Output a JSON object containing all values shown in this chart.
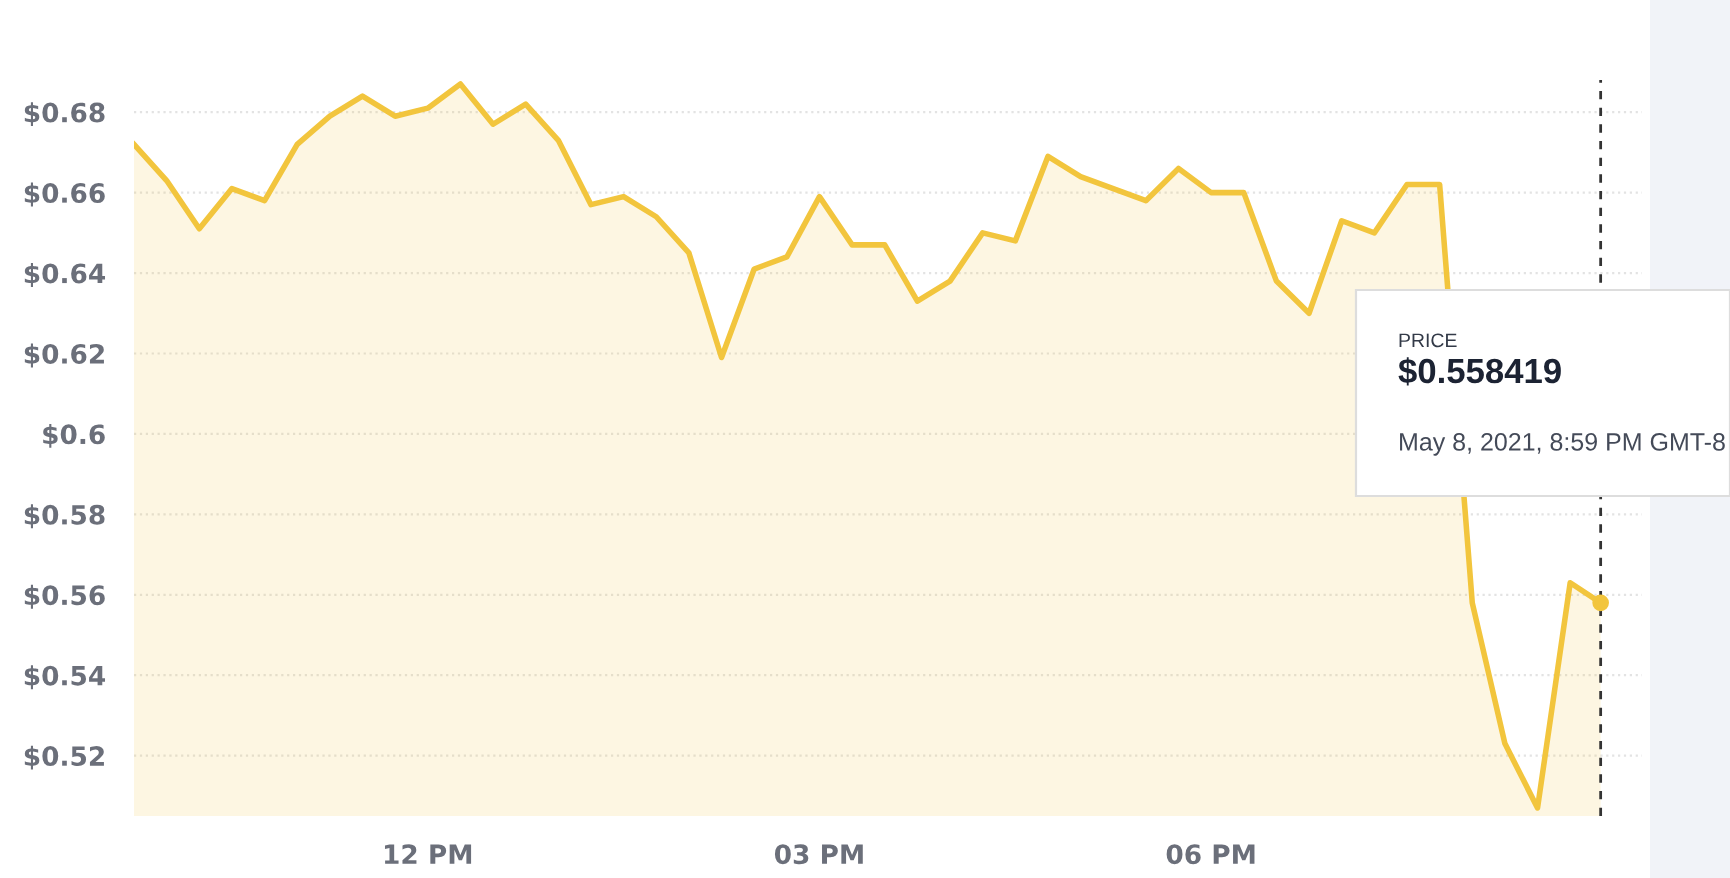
{
  "chart_data": {
    "type": "area",
    "x": [
      "2021-05-08T09:45",
      "2021-05-08T10:00",
      "2021-05-08T10:15",
      "2021-05-08T10:30",
      "2021-05-08T10:45",
      "2021-05-08T11:00",
      "2021-05-08T11:15",
      "2021-05-08T11:30",
      "2021-05-08T11:45",
      "2021-05-08T12:00",
      "2021-05-08T12:15",
      "2021-05-08T12:30",
      "2021-05-08T12:45",
      "2021-05-08T13:00",
      "2021-05-08T13:15",
      "2021-05-08T13:30",
      "2021-05-08T13:45",
      "2021-05-08T14:00",
      "2021-05-08T14:15",
      "2021-05-08T14:30",
      "2021-05-08T14:45",
      "2021-05-08T15:00",
      "2021-05-08T15:15",
      "2021-05-08T15:30",
      "2021-05-08T15:45",
      "2021-05-08T16:00",
      "2021-05-08T16:15",
      "2021-05-08T16:30",
      "2021-05-08T16:45",
      "2021-05-08T17:00",
      "2021-05-08T17:15",
      "2021-05-08T17:30",
      "2021-05-08T17:45",
      "2021-05-08T18:00",
      "2021-05-08T18:15",
      "2021-05-08T18:30",
      "2021-05-08T18:45",
      "2021-05-08T19:00",
      "2021-05-08T19:15",
      "2021-05-08T19:30",
      "2021-05-08T19:45",
      "2021-05-08T20:00",
      "2021-05-08T20:15",
      "2021-05-08T20:30",
      "2021-05-08T20:45",
      "2021-05-08T20:59"
    ],
    "series": [
      {
        "color": "#f2c53d",
        "values": [
          0.672,
          0.663,
          0.651,
          0.661,
          0.658,
          0.672,
          0.679,
          0.684,
          0.679,
          0.681,
          0.687,
          0.677,
          0.682,
          0.673,
          0.657,
          0.659,
          0.654,
          0.645,
          0.619,
          0.641,
          0.644,
          0.659,
          0.647,
          0.647,
          0.633,
          0.638,
          0.65,
          0.648,
          0.669,
          0.664,
          0.661,
          0.658,
          0.666,
          0.66,
          0.66,
          0.638,
          0.63,
          0.653,
          0.65,
          0.662,
          0.662,
          0.558,
          0.523,
          0.507,
          0.563,
          0.558
        ]
      }
    ],
    "xlim": [
      "2021-05-08T09:45",
      "2021-05-08T21:18"
    ],
    "xticks": [
      {
        "value": "2021-05-08T12:00",
        "label": "12 PM"
      },
      {
        "value": "2021-05-08T15:00",
        "label": "03 PM"
      },
      {
        "value": "2021-05-08T18:00",
        "label": "06 PM"
      }
    ],
    "ylim": [
      0.505,
      0.688
    ],
    "yticks": [
      {
        "value": 0.52,
        "label": "$0.52"
      },
      {
        "value": 0.54,
        "label": "$0.54"
      },
      {
        "value": 0.56,
        "label": "$0.56"
      },
      {
        "value": 0.58,
        "label": "$0.58"
      },
      {
        "value": 0.6,
        "label": "$0.6"
      },
      {
        "value": 0.62,
        "label": "$0.62"
      },
      {
        "value": 0.64,
        "label": "$0.64"
      },
      {
        "value": 0.66,
        "label": "$0.66"
      },
      {
        "value": 0.68,
        "label": "$0.68"
      }
    ],
    "grid": "y",
    "ref_lines": [
      {
        "axis": "x",
        "value": "2021-05-08T20:59",
        "color": "#333333",
        "line_style": "dashed"
      }
    ],
    "annotations": [
      "PRICE",
      "$0.558419",
      "May 8, 2021, 8:59 PM GMT-8"
    ]
  }
}
